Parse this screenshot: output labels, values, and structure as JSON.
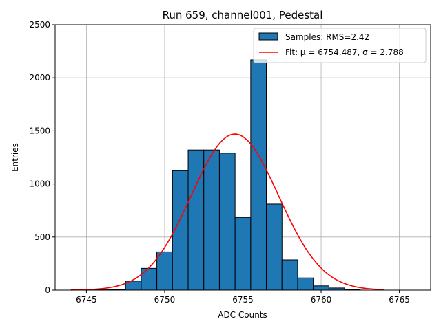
{
  "chart_data": {
    "type": "bar",
    "title": "Run 659, channel001, Pedestal",
    "xlabel": "ADC Counts",
    "ylabel": "Entries",
    "xlim": [
      6743,
      6767
    ],
    "ylim": [
      0,
      2500
    ],
    "xticks": [
      6745,
      6750,
      6755,
      6760,
      6765
    ],
    "yticks": [
      0,
      500,
      1000,
      1500,
      2000,
      2500
    ],
    "grid": true,
    "legend_position": "top-right",
    "bin_width": 1,
    "histogram": {
      "name": "Samples: RMS=2.42",
      "color": "#1f77b4",
      "bin_centers": [
        6746,
        6747,
        6748,
        6749,
        6750,
        6751,
        6752,
        6753,
        6754,
        6755,
        6756,
        6757,
        6758,
        6759,
        6760,
        6761,
        6762
      ],
      "values": [
        3,
        6,
        85,
        205,
        360,
        1125,
        1320,
        1320,
        1290,
        685,
        2170,
        810,
        285,
        115,
        40,
        20,
        6
      ]
    },
    "fit": {
      "name": "Fit: μ = 6754.487, σ = 2.788",
      "color": "#ff0000",
      "mu": 6754.487,
      "sigma": 2.788,
      "amplitude": 1470,
      "x_range": [
        6744,
        6764
      ]
    }
  }
}
